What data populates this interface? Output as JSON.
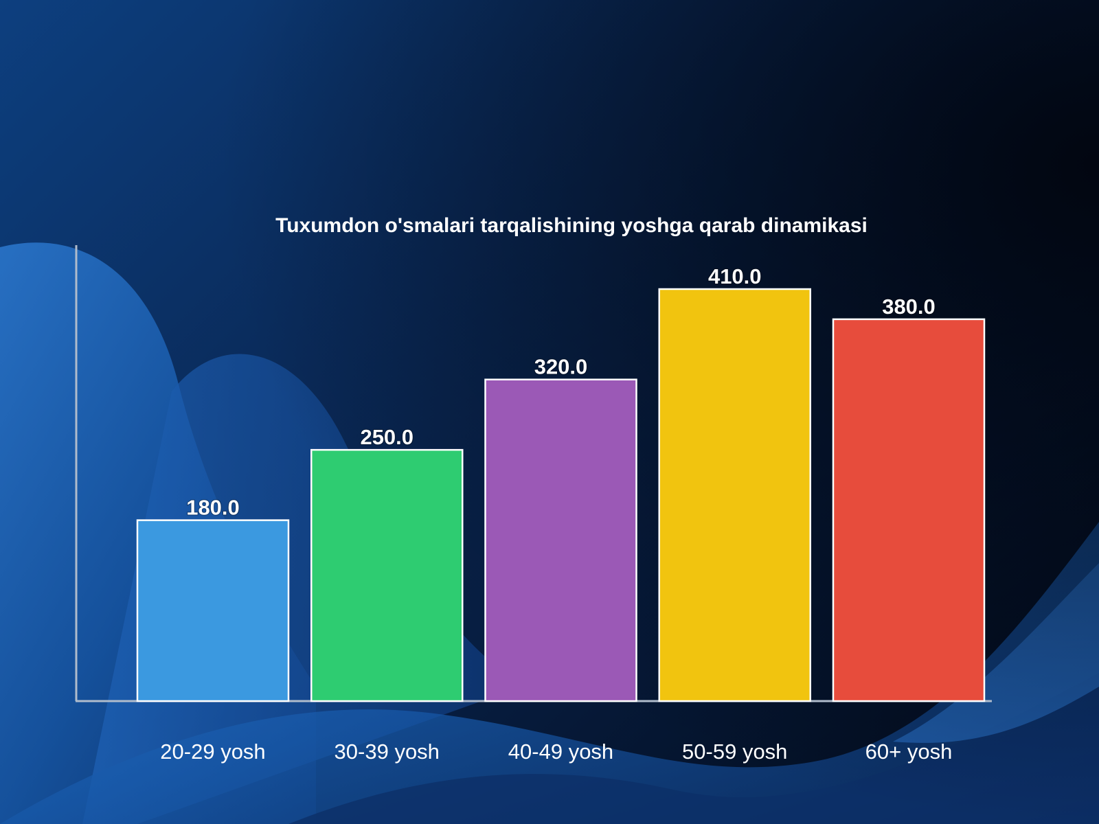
{
  "chart_data": {
    "type": "bar",
    "title": "Tuxumdon o'smalari tarqalishining yoshga qarab dinamikasi",
    "xlabel": "",
    "ylabel": "",
    "categories": [
      "20-29 yosh",
      "30-39 yosh",
      "40-49 yosh",
      "50-59 yosh",
      "60+ yosh"
    ],
    "values": [
      180.0,
      250.0,
      320.0,
      410.0,
      380.0
    ],
    "value_labels": [
      "180.0",
      "250.0",
      "320.0",
      "410.0",
      "380.0"
    ],
    "colors": [
      "#3b99e0",
      "#2ecc71",
      "#9b59b6",
      "#f1c40f",
      "#e74c3c"
    ],
    "bar_outline": "#ffffff",
    "axis_color": "#b0bccc",
    "ylim": [
      0,
      450
    ],
    "grid": false,
    "legend": "none"
  }
}
